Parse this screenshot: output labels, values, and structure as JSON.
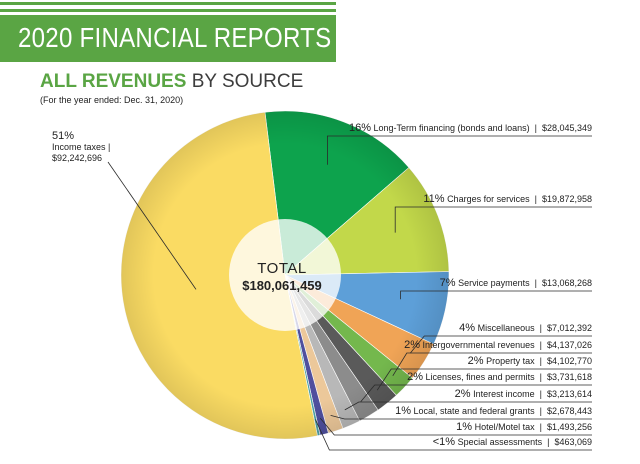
{
  "banner": {
    "title": "2020 FINANCIAL REPORTS"
  },
  "chart_data": {
    "type": "pie",
    "title_bold": "ALL REVENUES",
    "title_rest": "BY SOURCE",
    "subtitle": "(For the year ended: Dec. 31, 2020)",
    "total_label": "TOTAL",
    "total_value": "$180,061,459",
    "slices": [
      {
        "name": "Long-Term financing (bonds and loans)",
        "pct_label": "16%",
        "value": 28045349,
        "value_label": "$28,045,349",
        "color": "#0da34d"
      },
      {
        "name": "Charges for services",
        "pct_label": "11%",
        "value": 19872958,
        "value_label": "$19,872,958",
        "color": "#c2d84a"
      },
      {
        "name": "Service payments",
        "pct_label": "7%",
        "value": 13068268,
        "value_label": "$13,068,268",
        "color": "#5d9fd8"
      },
      {
        "name": "Miscellaneous",
        "pct_label": "4%",
        "value": 7012392,
        "value_label": "$7,012,392",
        "color": "#f0a456"
      },
      {
        "name": "Intergovernmental revenues",
        "pct_label": "2%",
        "value": 4137026,
        "value_label": "$4,137,026",
        "color": "#74b84d"
      },
      {
        "name": "Property tax",
        "pct_label": "2%",
        "value": 4102770,
        "value_label": "$4,102,770",
        "color": "#5a5a5a"
      },
      {
        "name": "Licenses, fines and permits",
        "pct_label": "2%",
        "value": 3731618,
        "value_label": "$3,731,618",
        "color": "#8c8c8c"
      },
      {
        "name": "Interest income",
        "pct_label": "2%",
        "value": 3213614,
        "value_label": "$3,213,614",
        "color": "#b8b8b8"
      },
      {
        "name": "Local, state and federal grants",
        "pct_label": "1%",
        "value": 2678443,
        "value_label": "$2,678,443",
        "color": "#ecc89a"
      },
      {
        "name": "Hotel/Motel tax",
        "pct_label": "1%",
        "value": 1493256,
        "value_label": "$1,493,256",
        "color": "#4f4f9e"
      },
      {
        "name": "Special assessments",
        "pct_label": "<1%",
        "value": 463069,
        "value_label": "$463,069",
        "color": "#4fa3a8"
      },
      {
        "name": "Income taxes",
        "pct_label": "51%",
        "value": 92242696,
        "value_label": "$92,242,696",
        "color": "#fadb63"
      }
    ]
  }
}
